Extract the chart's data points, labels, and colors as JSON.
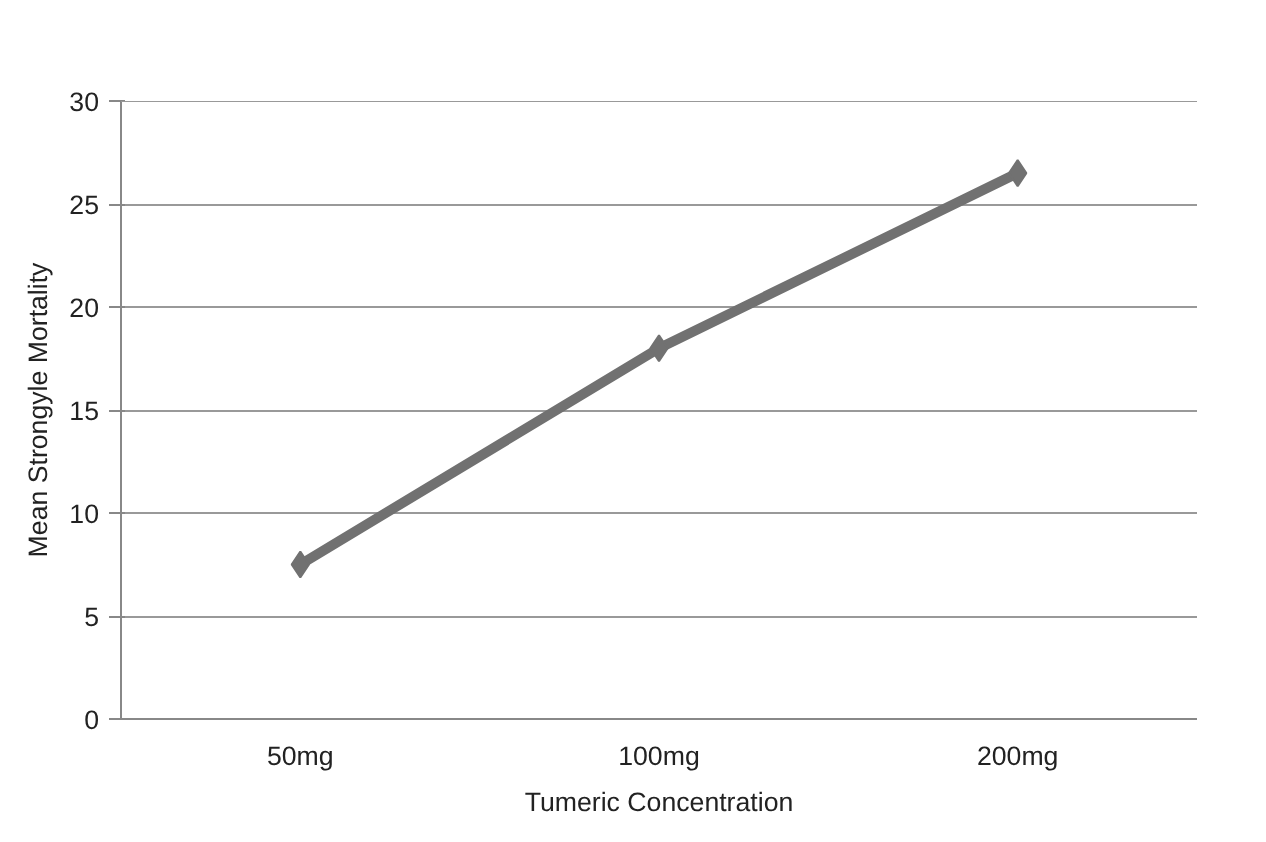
{
  "chart_data": {
    "type": "line",
    "xlabel": "Tumeric Concentration",
    "ylabel": "Mean Strongyle Mortality",
    "categories": [
      "50mg",
      "100mg",
      "200mg"
    ],
    "series": [
      {
        "color": "#717171",
        "values": [
          7.5,
          18,
          26.5
        ]
      }
    ],
    "ylim": [
      0,
      30
    ],
    "yticks": [
      0,
      5,
      10,
      15,
      20,
      25,
      30
    ],
    "grid": "y",
    "marker": "diamond",
    "line_style": "solid"
  }
}
